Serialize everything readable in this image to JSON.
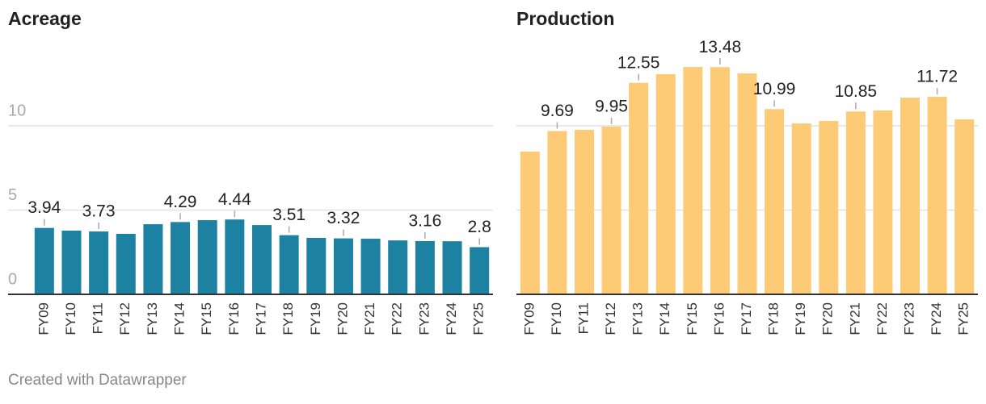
{
  "chart_data": [
    {
      "type": "bar",
      "title": "Acreage",
      "categories": [
        "FY09",
        "FY10",
        "FY11",
        "FY12",
        "FY13",
        "FY14",
        "FY15",
        "FY16",
        "FY17",
        "FY18",
        "FY19",
        "FY20",
        "FY21",
        "FY22",
        "FY23",
        "FY24",
        "FY25"
      ],
      "values": [
        3.94,
        3.78,
        3.73,
        3.59,
        4.16,
        4.29,
        4.4,
        4.44,
        4.11,
        3.51,
        3.35,
        3.32,
        3.3,
        3.2,
        3.16,
        3.15,
        2.8
      ],
      "label_indices": [
        0,
        2,
        5,
        7,
        9,
        11,
        14,
        16
      ],
      "color": "#1d81a2",
      "ylim": [
        0,
        14
      ],
      "yticks": [
        0,
        5,
        10
      ],
      "tick_labels": true,
      "grid": true
    },
    {
      "type": "bar",
      "title": "Production",
      "categories": [
        "FY09",
        "FY10",
        "FY11",
        "FY12",
        "FY13",
        "FY14",
        "FY15",
        "FY16",
        "FY17",
        "FY18",
        "FY19",
        "FY20",
        "FY21",
        "FY22",
        "FY23",
        "FY24",
        "FY25"
      ],
      "values": [
        8.47,
        9.69,
        9.76,
        9.95,
        12.55,
        13.06,
        13.49,
        13.48,
        13.11,
        10.99,
        10.14,
        10.29,
        10.85,
        10.91,
        11.67,
        11.72,
        10.38
      ],
      "label_indices": [
        1,
        3,
        4,
        7,
        9,
        12,
        15
      ],
      "color": "#fdca75",
      "ylim": [
        0,
        14
      ],
      "yticks": [
        0,
        5,
        10
      ],
      "tick_labels": false,
      "grid": true
    }
  ],
  "footer": "Created with Datawrapper"
}
